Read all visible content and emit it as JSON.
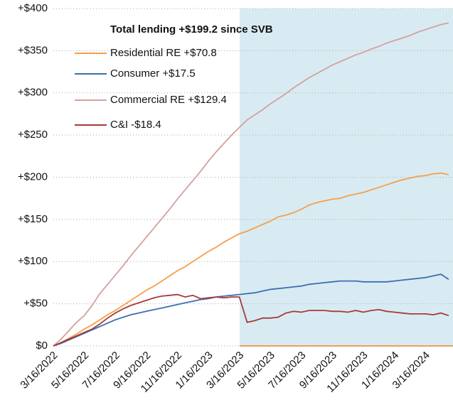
{
  "chart_data": {
    "type": "line",
    "title": "Total lending +$199.2 since SVB",
    "categories": [
      "3/16/2022",
      null,
      null,
      null,
      "5/16/2022",
      null,
      null,
      null,
      "7/16/2022",
      null,
      null,
      null,
      "9/16/2022",
      null,
      null,
      null,
      "11/16/2022",
      null,
      null,
      null,
      "1/16/2023",
      null,
      null,
      null,
      "3/16/2023",
      null,
      null,
      null,
      "5/16/2023",
      null,
      null,
      null,
      "7/16/2023",
      null,
      null,
      null,
      "9/16/2023",
      null,
      null,
      null,
      "11/16/2023",
      null,
      null,
      null,
      "1/16/2024",
      null,
      null,
      null,
      "3/16/2024",
      null,
      null,
      null
    ],
    "series": [
      {
        "name": "Residential RE +$70.8",
        "color": "#f4a04a",
        "values": [
          0,
          4,
          9,
          14,
          20,
          25,
          31,
          37,
          42,
          48,
          54,
          60,
          66,
          71,
          77,
          83,
          89,
          94,
          100,
          106,
          112,
          117,
          123,
          128,
          133,
          136,
          140,
          144,
          148,
          153,
          155,
          158,
          162,
          167,
          170,
          172,
          174,
          175,
          178,
          180,
          182,
          185,
          188,
          191,
          194,
          197,
          199,
          201,
          202,
          204,
          205,
          203
        ]
      },
      {
        "name": "Consumer +$17.5",
        "color": "#3a6fb0",
        "values": [
          0,
          3,
          7,
          11,
          15,
          19,
          23,
          27,
          31,
          34,
          37,
          39,
          41,
          43,
          45,
          47,
          49,
          51,
          53,
          55,
          56,
          58,
          59,
          60,
          61,
          62,
          63,
          65,
          67,
          68,
          69,
          70,
          71,
          73,
          74,
          75,
          76,
          77,
          77,
          77,
          76,
          76,
          76,
          76,
          77,
          78,
          79,
          80,
          81,
          83,
          85,
          79
        ]
      },
      {
        "name": "Commercial RE +$129.4",
        "color": "#d4a0a0",
        "values": [
          0,
          8,
          18,
          28,
          36,
          48,
          62,
          73,
          84,
          95,
          107,
          118,
          129,
          140,
          151,
          162,
          174,
          185,
          196,
          207,
          219,
          230,
          240,
          250,
          259,
          268,
          274,
          280,
          287,
          293,
          299,
          306,
          312,
          318,
          323,
          328,
          333,
          337,
          341,
          345,
          348,
          352,
          355,
          359,
          362,
          365,
          368,
          372,
          375,
          378,
          381,
          383
        ]
      },
      {
        "name": "C&I -$18.4",
        "color": "#a83a3a",
        "values": [
          0,
          4,
          8,
          12,
          16,
          20,
          26,
          33,
          39,
          44,
          48,
          51,
          54,
          57,
          59,
          60,
          61,
          58,
          60,
          56,
          57,
          58,
          57,
          58,
          58,
          28,
          30,
          33,
          33,
          34,
          39,
          41,
          40,
          42,
          42,
          42,
          41,
          41,
          40,
          42,
          40,
          42,
          43,
          41,
          40,
          39,
          38,
          38,
          38,
          37,
          39,
          36
        ]
      }
    ],
    "ylim": [
      0,
      400
    ],
    "yticks": [
      {
        "value": 0,
        "label": "$0"
      },
      {
        "value": 50,
        "label": "+$50"
      },
      {
        "value": 100,
        "label": "+$100"
      },
      {
        "value": 150,
        "label": "+$150"
      },
      {
        "value": 200,
        "label": "+$200"
      },
      {
        "value": 250,
        "label": "+$250"
      },
      {
        "value": 300,
        "label": "+$300"
      },
      {
        "value": 350,
        "label": "+$350"
      },
      {
        "value": 400,
        "label": "+$400"
      }
    ],
    "grid": true
  }
}
